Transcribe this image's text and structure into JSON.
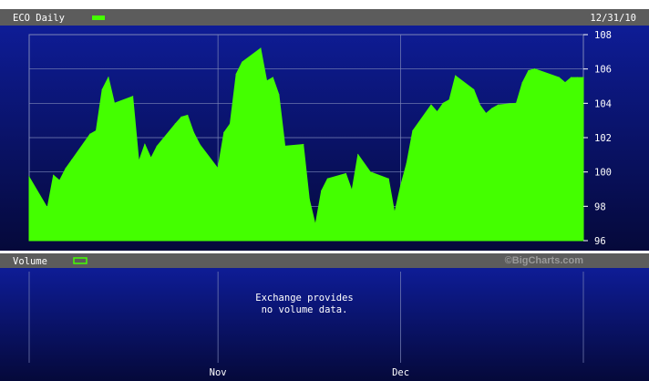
{
  "chart_data": {
    "type": "area",
    "title": "ECO Daily",
    "date": "12/31/10",
    "watermark": "©BigCharts.com",
    "ylim": [
      96,
      108
    ],
    "y_ticks": [
      "108",
      "106",
      "104",
      "102",
      "100",
      "98",
      "96"
    ],
    "x_ticks": [
      {
        "label": "Nov",
        "date": "2010-11-01"
      },
      {
        "label": "Dec",
        "date": "2010-12-01"
      }
    ],
    "x_range": [
      "2010-10-01",
      "2010-12-31"
    ],
    "series": [
      {
        "color": "#44ff00",
        "points": [
          [
            "2010-10-01",
            99.7
          ],
          [
            "2010-10-04",
            97.9
          ],
          [
            "2010-10-05",
            99.8
          ],
          [
            "2010-10-06",
            99.5
          ],
          [
            "2010-10-07",
            100.2
          ],
          [
            "2010-10-08",
            100.7
          ],
          [
            "2010-10-11",
            102.2
          ],
          [
            "2010-10-12",
            102.4
          ],
          [
            "2010-10-13",
            104.8
          ],
          [
            "2010-10-14",
            105.5
          ],
          [
            "2010-10-15",
            104.0
          ],
          [
            "2010-10-18",
            104.4
          ],
          [
            "2010-10-19",
            100.6
          ],
          [
            "2010-10-20",
            101.6
          ],
          [
            "2010-10-21",
            100.8
          ],
          [
            "2010-10-22",
            101.5
          ],
          [
            "2010-10-25",
            102.8
          ],
          [
            "2010-10-26",
            103.2
          ],
          [
            "2010-10-27",
            103.3
          ],
          [
            "2010-10-28",
            102.3
          ],
          [
            "2010-10-29",
            101.6
          ],
          [
            "2010-11-01",
            100.2
          ],
          [
            "2010-11-02",
            102.3
          ],
          [
            "2010-11-03",
            102.8
          ],
          [
            "2010-11-04",
            105.7
          ],
          [
            "2010-11-05",
            106.4
          ],
          [
            "2010-11-08",
            107.2
          ],
          [
            "2010-11-09",
            105.3
          ],
          [
            "2010-11-10",
            105.5
          ],
          [
            "2010-11-11",
            104.5
          ],
          [
            "2010-11-12",
            101.5
          ],
          [
            "2010-11-15",
            101.6
          ],
          [
            "2010-11-16",
            98.4
          ],
          [
            "2010-11-17",
            96.9
          ],
          [
            "2010-11-18",
            98.9
          ],
          [
            "2010-11-19",
            99.6
          ],
          [
            "2010-11-22",
            99.9
          ],
          [
            "2010-11-23",
            98.9
          ],
          [
            "2010-11-24",
            101.0
          ],
          [
            "2010-11-26",
            100.0
          ],
          [
            "2010-11-29",
            99.6
          ],
          [
            "2010-11-30",
            97.6
          ],
          [
            "2010-12-01",
            99.2
          ],
          [
            "2010-12-02",
            100.5
          ],
          [
            "2010-12-03",
            102.4
          ],
          [
            "2010-12-06",
            103.9
          ],
          [
            "2010-12-07",
            103.5
          ],
          [
            "2010-12-08",
            104.0
          ],
          [
            "2010-12-09",
            104.2
          ],
          [
            "2010-12-10",
            105.6
          ],
          [
            "2010-12-13",
            104.8
          ],
          [
            "2010-12-14",
            103.9
          ],
          [
            "2010-12-15",
            103.4
          ],
          [
            "2010-12-16",
            103.7
          ],
          [
            "2010-12-17",
            103.9
          ],
          [
            "2010-12-20",
            104.0
          ],
          [
            "2010-12-21",
            105.2
          ],
          [
            "2010-12-22",
            105.9
          ],
          [
            "2010-12-23",
            106.0
          ],
          [
            "2010-12-27",
            105.5
          ],
          [
            "2010-12-28",
            105.2
          ],
          [
            "2010-12-29",
            105.5
          ],
          [
            "2010-12-30",
            105.5
          ],
          [
            "2010-12-31",
            105.5
          ]
        ]
      }
    ],
    "volume": {
      "label": "Volume",
      "message": [
        "Exchange provides",
        "no volume data."
      ]
    }
  },
  "colors": {
    "header_bar": "#5c5c5c",
    "plot_top": "#0e1c96",
    "plot_bottom": "#05093a",
    "series": "#44ff00",
    "grid": "#7c86b8",
    "text": "#ffffff",
    "watermark": "#9a9a9a"
  }
}
